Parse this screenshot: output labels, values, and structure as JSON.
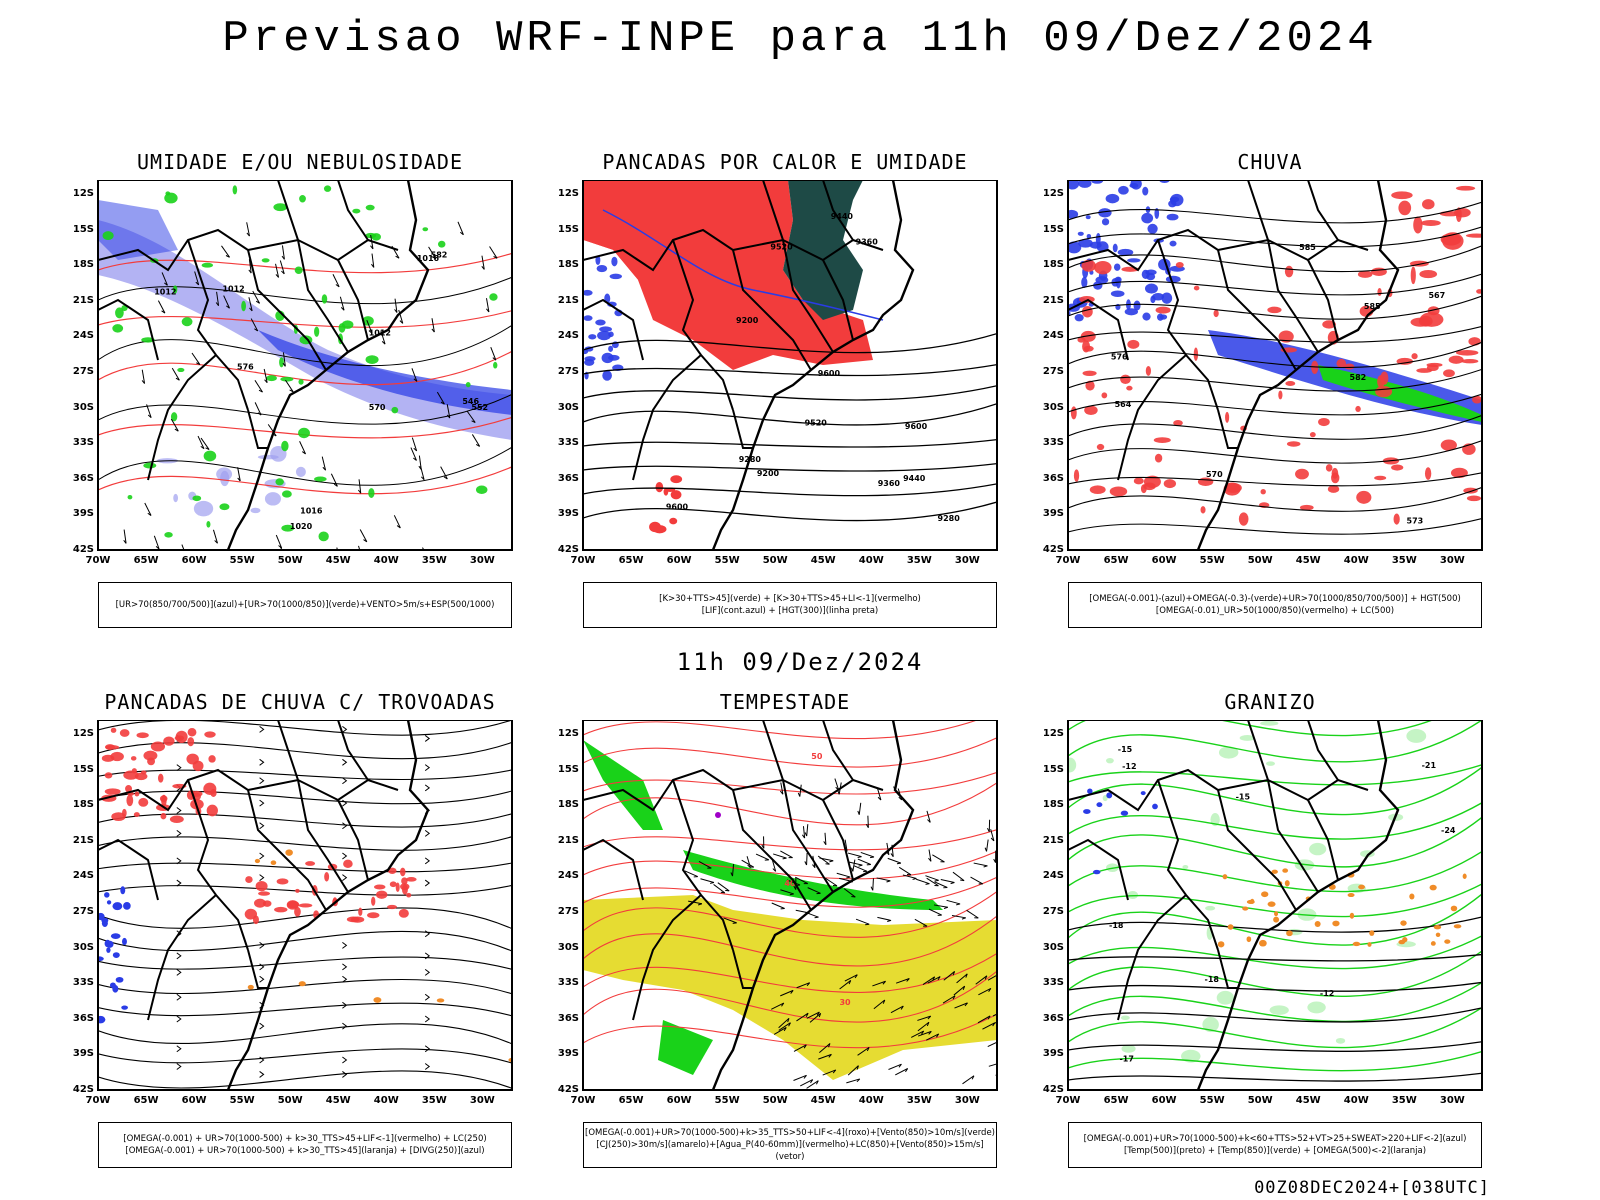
{
  "header": {
    "title": "Previsao WRF-INPE  para 11h 09/Dez/2024"
  },
  "middle_label": "11h 09/Dez/2024",
  "footer_label": "00Z08DEC2024+[038UTC]",
  "axes": {
    "lat": [
      "12S",
      "15S",
      "18S",
      "21S",
      "24S",
      "27S",
      "30S",
      "33S",
      "36S",
      "39S",
      "42S"
    ],
    "lon": [
      "70W",
      "65W",
      "60W",
      "55W",
      "50W",
      "45W",
      "40W",
      "35W",
      "30W"
    ]
  },
  "colors": {
    "red": "#f23c3c",
    "green": "#19d219",
    "blue": "#2a3ce6",
    "lavender": "#a0a0f0",
    "darkteal": "#1e4a46",
    "yellow": "#e6dc32",
    "orange": "#f08c28",
    "purple": "#a000c8"
  },
  "panels": [
    {
      "id": "umidade",
      "title": "UMIDADE E/OU NEBULOSIDADE",
      "legend": [
        "[UR>70(850/700/500)](azul)+[UR>70(1000/850)](verde)+VENTO>5m/s+ESP(500/1000)"
      ],
      "contour_labels": [
        "1012",
        "1012",
        "1012",
        "1016",
        "1016",
        "1020",
        "570",
        "576",
        "582",
        "552",
        "546"
      ]
    },
    {
      "id": "calor",
      "title": "PANCADAS POR CALOR E UMIDADE",
      "legend": [
        "[K>30+TTS>45](verde) + [K>30+TTS>45+LI<-1](vermelho)",
        "[LIF](cont.azul) + [HGT(300)](linha preta)"
      ],
      "contour_labels": [
        "9600",
        "9600",
        "9600",
        "9520",
        "9520",
        "9440",
        "9440",
        "9360",
        "9360",
        "9280",
        "9280",
        "9200",
        "9200"
      ]
    },
    {
      "id": "chuva",
      "title": "CHUVA",
      "legend": [
        "[OMEGA(-0.001)-(azul)+OMEGA(-0.3)-(verde)+UR>70(1000/850/700/500)] + HGT(500)",
        "[OMEGA(-0.01)_UR>50(1000/850)(vermelho) + LC(500)"
      ],
      "contour_labels": [
        "585",
        "585",
        "582",
        "576",
        "570",
        "567",
        "564",
        "573"
      ]
    },
    {
      "id": "trovoadas",
      "title": "PANCADAS DE CHUVA C/ TROVOADAS",
      "legend": [
        "[OMEGA(-0.001) + UR>70(1000-500) + k>30_TTS>45+LIF<-1](vermelho) + LC(250)",
        "[OMEGA(-0.001) + UR>70(1000-500) + k>30_TTS>45](laranja) + [DIVG(250)](azul)"
      ],
      "contour_labels": []
    },
    {
      "id": "tempestade",
      "title": "TEMPESTADE",
      "legend": [
        "[OMEGA(-0.001)+UR>70(1000-500)+k>35_TTS>50+LIF<-4](roxo)+[Vento(850)>10m/s](verde)",
        "[CJ(250)>30m/s](amarelo)+[Agua_P(40-60mm)](vermelho)+LC(850)+[Vento(850)>15m/s](vetor)"
      ],
      "contour_labels": [
        "50",
        "40",
        "30"
      ]
    },
    {
      "id": "granizo",
      "title": "GRANIZO",
      "legend": [
        "[OMEGA(-0.001)+UR>70(1000-500)+k<60+TTS>52+VT>25+SWEAT>220+LIF<-2](azul)",
        "[Temp(500)](preto) + [Temp(850)](verde) + [OMEGA(500)<-2](laranja)"
      ],
      "contour_labels": [
        "-12",
        "-15",
        "-18",
        "-21",
        "-24",
        "-12",
        "-15",
        "-18",
        "-17"
      ]
    }
  ]
}
